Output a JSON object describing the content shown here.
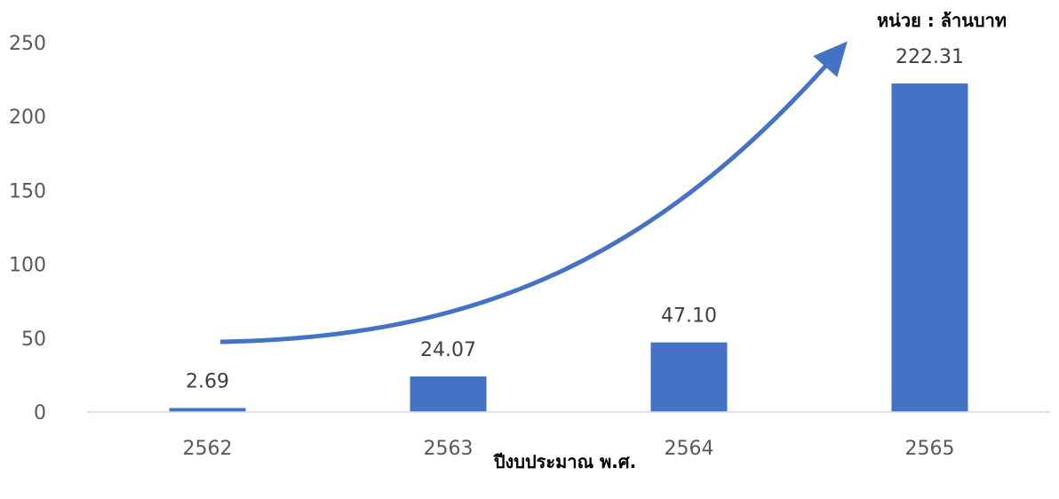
{
  "chart_data": {
    "type": "bar",
    "categories": [
      "2562",
      "2563",
      "2564",
      "2565"
    ],
    "values": [
      2.69,
      24.07,
      47.1,
      222.31
    ],
    "data_labels": [
      "2.69",
      "24.07",
      "47.10",
      "222.31"
    ],
    "xlabel": "ปีงบประมาณ พ.ศ.",
    "unit_label": "หน่วย : ล้านบาท",
    "ylim": [
      0,
      250
    ],
    "yticks": [
      0,
      50,
      100,
      150,
      200,
      250
    ],
    "grid": false,
    "legend": "none",
    "trend_arrow": true,
    "colors": {
      "bar": "#4472C4",
      "arrow": "#4472C4",
      "axis": "#D9D9D9"
    }
  }
}
